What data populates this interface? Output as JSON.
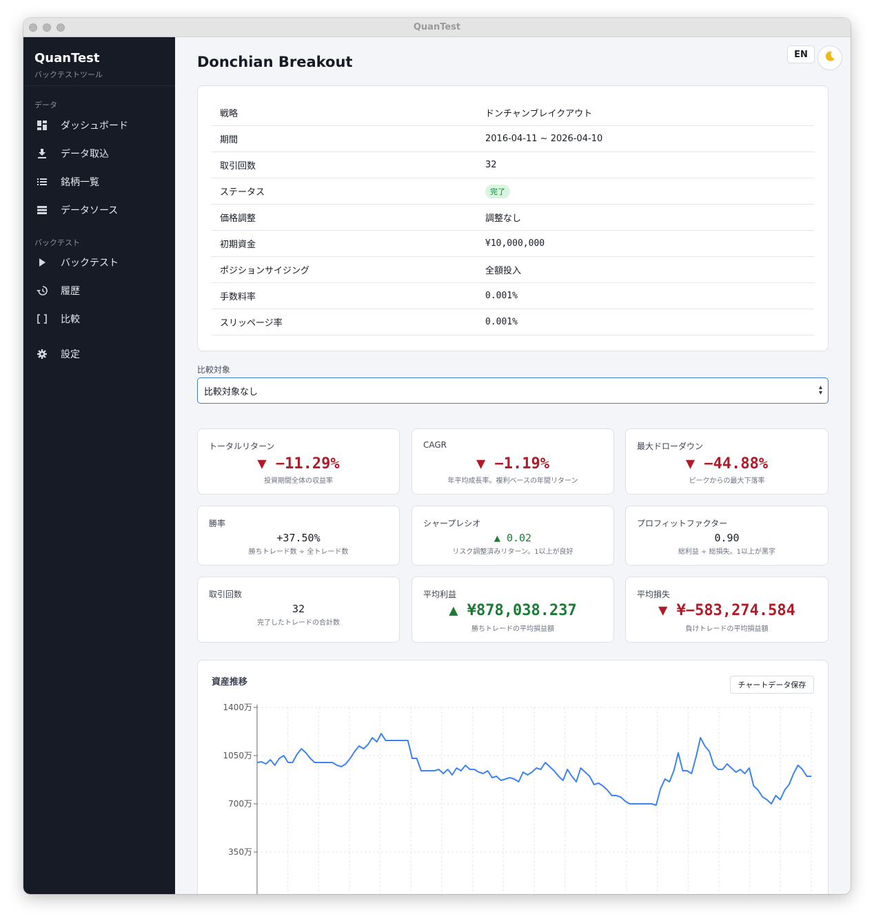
{
  "window": {
    "title": "QuanTest"
  },
  "sidebar": {
    "brand": "QuanTest",
    "brand_sub": "バックテストツール",
    "section_data": "データ",
    "section_backtest": "バックテスト",
    "items": [
      {
        "label": "ダッシュボード",
        "icon": "dashboard-icon"
      },
      {
        "label": "データ取込",
        "icon": "download-icon"
      },
      {
        "label": "銘柄一覧",
        "icon": "list-icon"
      },
      {
        "label": "データソース",
        "icon": "storage-icon"
      },
      {
        "label": "バックテスト",
        "icon": "play-icon"
      },
      {
        "label": "履歴",
        "icon": "history-icon"
      },
      {
        "label": "比較",
        "icon": "compare-icon"
      },
      {
        "label": "設定",
        "icon": "gear-icon"
      }
    ]
  },
  "header": {
    "title": "Donchian Breakout",
    "lang": "EN",
    "theme_icon": "moon-icon"
  },
  "info": [
    {
      "key": "戦略",
      "value": "ドンチャンブレイクアウト"
    },
    {
      "key": "期間",
      "value": "2016-04-11 ~ 2026-04-10"
    },
    {
      "key": "取引回数",
      "value": "32"
    },
    {
      "key": "ステータス",
      "value": "完了"
    },
    {
      "key": "価格調整",
      "value": "調整なし"
    },
    {
      "key": "初期資金",
      "value": "¥10,000,000"
    },
    {
      "key": "ポジションサイジング",
      "value": "全額投入"
    },
    {
      "key": "手数料率",
      "value": "0.001%"
    },
    {
      "key": "スリッページ率",
      "value": "0.001%"
    }
  ],
  "compare": {
    "label": "比較対象",
    "selected": "比較対象なし"
  },
  "metrics": [
    {
      "label": "トータルリターン",
      "value": "▼ −11.29%",
      "desc": "投資期間全体の収益率",
      "tone": "neg"
    },
    {
      "label": "CAGR",
      "value": "▼ −1.19%",
      "desc": "年平均成長率。複利ベースの年間リターン",
      "tone": "neg"
    },
    {
      "label": "最大ドローダウン",
      "value": "▼ −44.88%",
      "desc": "ピークからの最大下落率",
      "tone": "neg"
    },
    {
      "label": "勝率",
      "value": "+37.50%",
      "desc": "勝ちトレード数 ÷ 全トレード数",
      "tone": "neu"
    },
    {
      "label": "シャープレシオ",
      "value": "▲ 0.02",
      "desc": "リスク調整済みリターン。1以上が良好",
      "tone": "pos"
    },
    {
      "label": "プロフィットファクター",
      "value": "0.90",
      "desc": "総利益 ÷ 総損失。1以上が黒字",
      "tone": "neu"
    },
    {
      "label": "取引回数",
      "value": "32",
      "desc": "完了したトレードの合計数",
      "tone": "neu"
    },
    {
      "label": "平均利益",
      "value": "▲ ¥878,038.237",
      "desc": "勝ちトレードの平均損益額",
      "tone": "pos"
    },
    {
      "label": "平均損失",
      "value": "▼ ¥−583,274.584",
      "desc": "負けトレードの平均損益額",
      "tone": "neg"
    }
  ],
  "chart": {
    "title": "資産推移",
    "save_label": "チャートデータ保存"
  },
  "chart_data": {
    "type": "line",
    "ylim": [
      0,
      14000000
    ],
    "y_ticks": [
      3500000,
      7000000,
      10500000,
      14000000
    ],
    "y_tick_labels": [
      "350万",
      "700万",
      "1050万",
      "1400万"
    ],
    "series": [
      {
        "color": "#3b82f6",
        "values": [
          10000000,
          10050000,
          9900000,
          10200000,
          9800000,
          10300000,
          10500000,
          10000000,
          10000000,
          10600000,
          11000000,
          10700000,
          10300000,
          10000000,
          10000000,
          10000000,
          10000000,
          10000000,
          9800000,
          9700000,
          9900000,
          10300000,
          10800000,
          11200000,
          11000000,
          11300000,
          11800000,
          11500000,
          12100000,
          11600000,
          11600000,
          11600000,
          11600000,
          11600000,
          11600000,
          10300000,
          10300000,
          9400000,
          9400000,
          9400000,
          9400000,
          9500000,
          9200000,
          9500000,
          9100000,
          9600000,
          9400000,
          9800000,
          9500000,
          9500000,
          9300000,
          9200000,
          9400000,
          8900000,
          9000000,
          8700000,
          8800000,
          8900000,
          8800000,
          8600000,
          9300000,
          9100000,
          9300000,
          9600000,
          9500000,
          10000000,
          9700000,
          9400000,
          9000000,
          8700000,
          9500000,
          9000000,
          8600000,
          9600000,
          9300000,
          9000000,
          8400000,
          8500000,
          8300000,
          8000000,
          7600000,
          7600000,
          7500000,
          7200000,
          7000000,
          7000000,
          7000000,
          7000000,
          7000000,
          7000000,
          6900000,
          8100000,
          8800000,
          8600000,
          9400000,
          10700000,
          9400000,
          9400000,
          9200000,
          10400000,
          11800000,
          11200000,
          10800000,
          9800000,
          9500000,
          9500000,
          9900000,
          9600000,
          9300000,
          9500000,
          9200000,
          9600000,
          8300000,
          8000000,
          7500000,
          7300000,
          7000000,
          7600000,
          7300000,
          8000000,
          8400000,
          9200000,
          9800000,
          9500000,
          9000000,
          9000000
        ]
      }
    ]
  }
}
